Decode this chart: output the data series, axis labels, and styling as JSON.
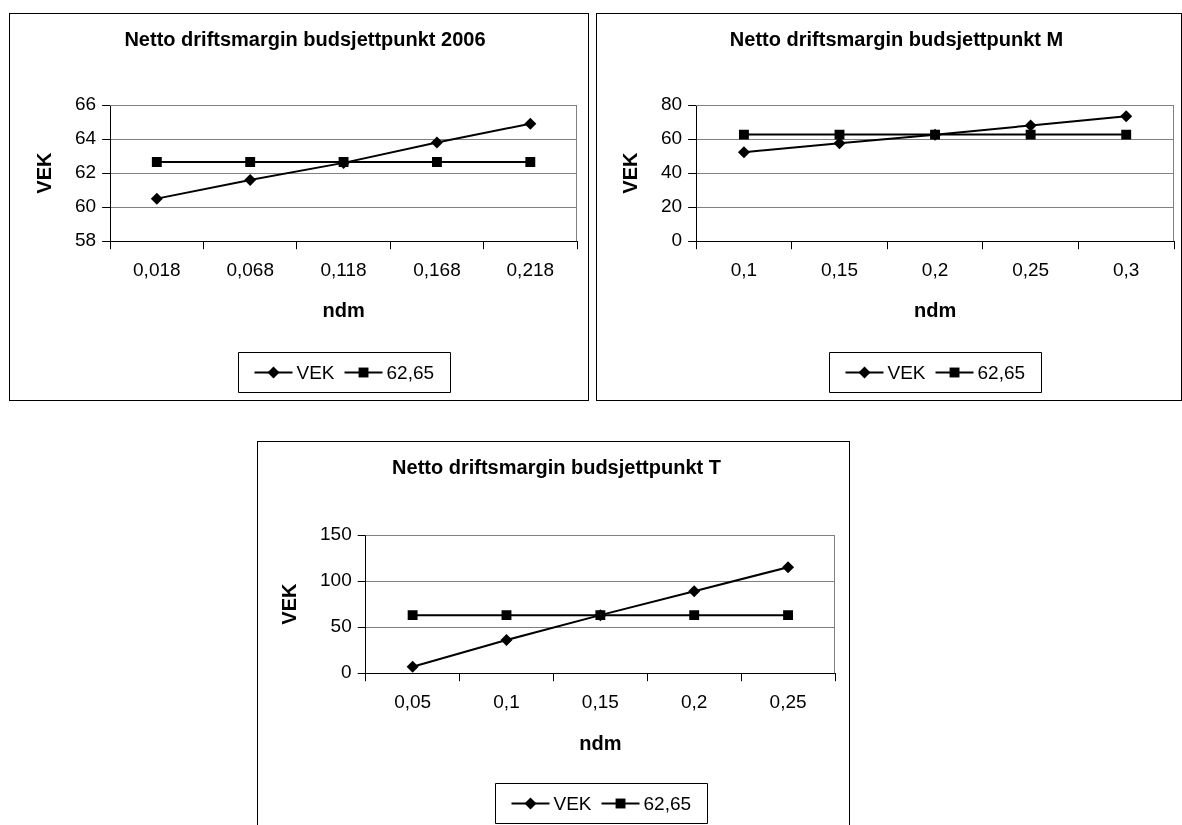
{
  "chart_data": [
    {
      "type": "line",
      "title": "Netto driftsmargin budsjettpunkt 2006",
      "xlabel": "ndm",
      "ylabel": "VEK",
      "categories": [
        "0,018",
        "0,068",
        "0,118",
        "0,168",
        "0,218"
      ],
      "series": [
        {
          "name": "VEK",
          "color": "#000000",
          "marker": "diamond",
          "values": [
            60.5,
            61.6,
            62.6,
            63.8,
            64.9
          ]
        },
        {
          "name": "62,65",
          "color": "#000000",
          "marker": "square",
          "values": [
            62.65,
            62.65,
            62.65,
            62.65,
            62.65
          ]
        }
      ],
      "ylim": [
        58,
        66
      ],
      "yticks": [
        58,
        60,
        62,
        64,
        66
      ],
      "grid": "y",
      "legend": "bottom"
    },
    {
      "type": "line",
      "title": "Netto driftsmargin budsjettpunkt M",
      "xlabel": "ndm",
      "ylabel": "VEK",
      "categories": [
        "0,1",
        "0,15",
        "0,2",
        "0,25",
        "0,3"
      ],
      "series": [
        {
          "name": "VEK",
          "color": "#000000",
          "marker": "diamond",
          "values": [
            52.3,
            57.5,
            62.5,
            68,
            73.4
          ]
        },
        {
          "name": "62,65",
          "color": "#000000",
          "marker": "square",
          "values": [
            62.6,
            62.6,
            62.6,
            62.6,
            62.6
          ]
        }
      ],
      "ylim": [
        0,
        80
      ],
      "yticks": [
        0,
        20,
        40,
        60,
        80
      ],
      "grid": "y",
      "legend": "bottom"
    },
    {
      "type": "line",
      "title": "Netto driftsmargin budsjettpunkt T",
      "xlabel": "ndm",
      "ylabel": "VEK",
      "categories": [
        "0,05",
        "0,1",
        "0,15",
        "0,2",
        "0,25"
      ],
      "series": [
        {
          "name": "VEK",
          "color": "#000000",
          "marker": "diamond",
          "values": [
            7,
            36,
            63,
            89,
            115
          ]
        },
        {
          "name": "62,65",
          "color": "#000000",
          "marker": "square",
          "values": [
            63,
            63,
            63,
            63,
            63
          ]
        }
      ],
      "ylim": [
        0,
        150
      ],
      "yticks": [
        0,
        50,
        100,
        150
      ],
      "grid": "y",
      "legend": "bottom"
    }
  ]
}
